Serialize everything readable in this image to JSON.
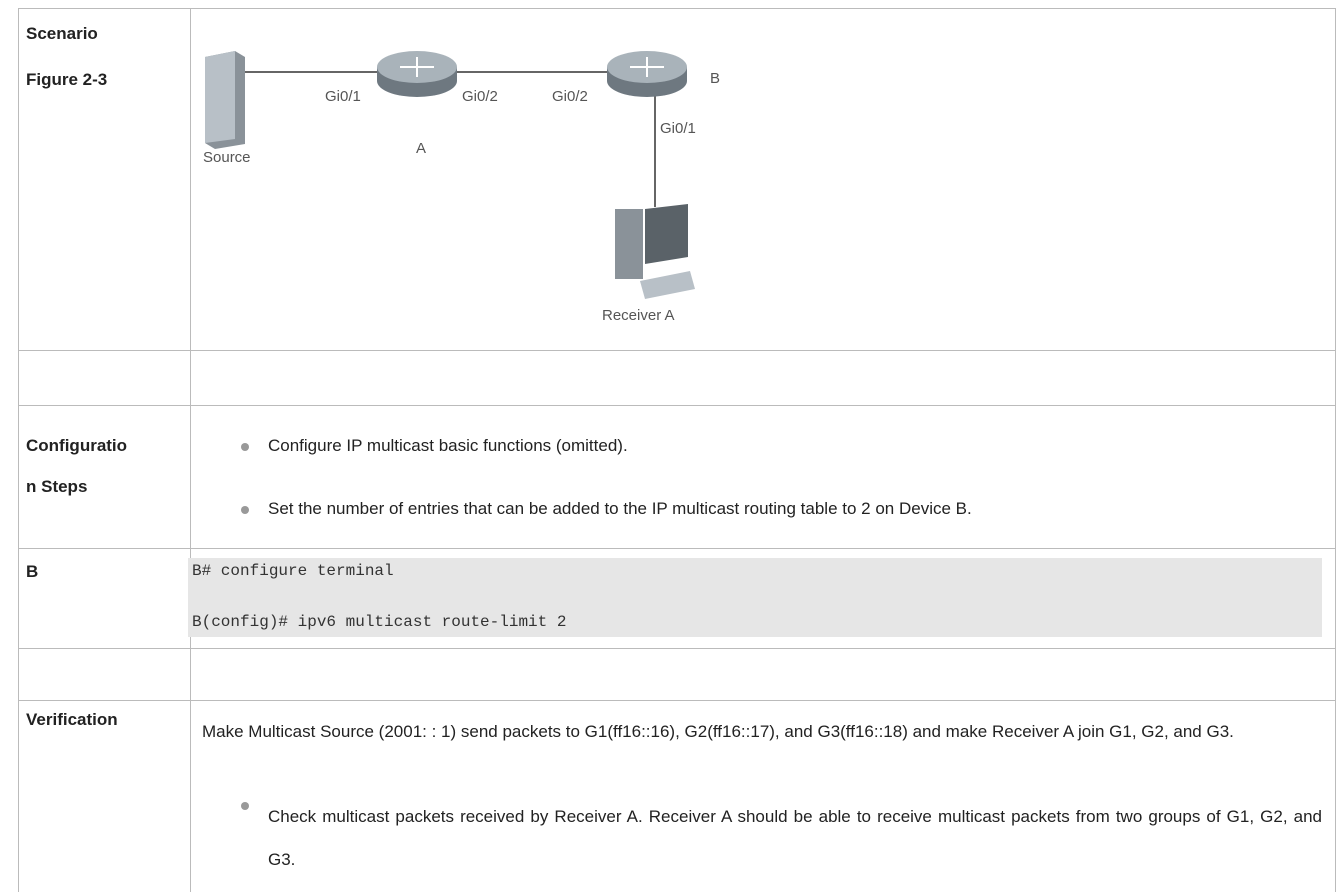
{
  "table": {
    "scenario": {
      "heading": "Scenario",
      "figure": "Figure 2-3"
    },
    "diagram": {
      "port_a_1": "Gi0/1",
      "port_a_2": "Gi0/2",
      "port_b_2": "Gi0/2",
      "router_b": "B",
      "port_b_1": "Gi0/1",
      "source": "Source",
      "router_a": "A",
      "receiver": "Receiver A"
    },
    "config": {
      "heading": [
        "Configuratio",
        "n Steps"
      ],
      "bullets": [
        "Configure IP multicast basic functions (omitted).",
        "Set the number of entries that can be added to the IP multicast routing table to 2 on Device B."
      ]
    },
    "device_b": {
      "heading": "B",
      "code": [
        "B# configure terminal",
        "B(config)# ipv6 multicast route-limit 2"
      ]
    },
    "verification": {
      "heading": "Verification",
      "text": "Make Multicast Source (2001: : 1) send packets to G1(ff16::16), G2(ff16::17), and G3(ff16::18) and make Receiver A join G1, G2, and G3.",
      "bullets": [
        "Check multicast packets received by Receiver A. Receiver A should be able to receive multicast packets from two groups of G1, G2, and G3."
      ]
    }
  }
}
